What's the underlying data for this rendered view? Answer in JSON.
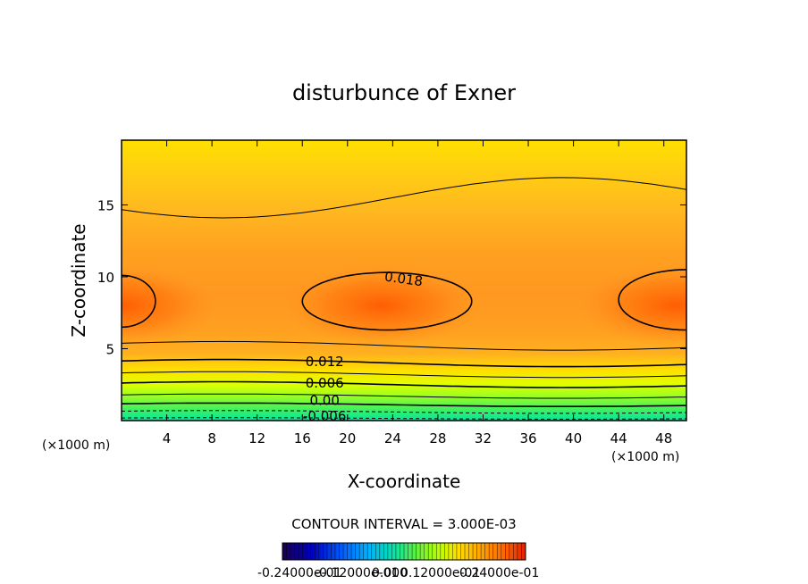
{
  "chart_data": {
    "type": "contour",
    "title": "disturbunce of Exner",
    "xlabel": "X-coordinate",
    "ylabel": "Z-coordinate",
    "x_unit_label": "(×1000 m)",
    "x_unit_label_right": "(×1000 m)",
    "xlim": [
      0,
      50
    ],
    "ylim": [
      0,
      19.5
    ],
    "xticks": [
      4,
      8,
      12,
      16,
      20,
      24,
      28,
      32,
      36,
      40,
      44,
      48
    ],
    "yticks": [
      5,
      10,
      15
    ],
    "contour_interval_text": "CONTOUR INTERVAL = 3.000E-03",
    "contour_labels": [
      {
        "text": "0.018",
        "x": 24.5,
        "z": 9.9
      },
      {
        "text": "0.012",
        "x": 17.5,
        "z": 4.1
      },
      {
        "text": "0.006",
        "x": 17.5,
        "z": 2.6
      },
      {
        "text": "0.00",
        "x": 17.5,
        "z": 1.4
      },
      {
        "text": "-0.006",
        "x": 17.5,
        "z": 0.3
      }
    ],
    "field_maxima": [
      {
        "x": 23,
        "z": 8
      },
      {
        "x": 0,
        "z": 8
      },
      {
        "x": 49,
        "z": 8
      }
    ],
    "colorbar": {
      "min_label": "-0.24000e-01",
      "mid_labels": [
        "-0.12000e-01",
        "0.000",
        "0.12000e-01"
      ],
      "max_label": "0.24000e-01",
      "range": [
        -0.024,
        0.024
      ],
      "colors": [
        "#1a0050",
        "#0000c0",
        "#0060ff",
        "#00b0ff",
        "#00e0b0",
        "#00f060",
        "#60ff00",
        "#c0ff00",
        "#ffe000",
        "#ffa000",
        "#ff6000",
        "#e02000"
      ]
    }
  }
}
